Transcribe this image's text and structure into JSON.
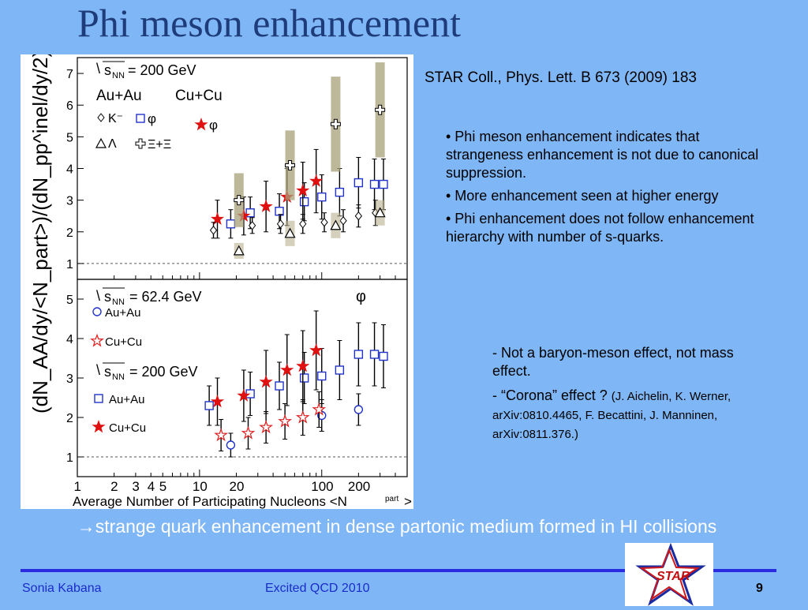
{
  "slide": {
    "title": "Phi meson enhancement",
    "reference": "STAR Coll., Phys. Lett. B 673 (2009) 183",
    "bullets": [
      "• Phi meson enhancement indicates that strangeness enhancement is not due to canonical suppression.",
      "• More enhancement seen at higher energy",
      "• Phi enhancement does not follow enhancement hierarchy with number of s-quarks."
    ],
    "sub_bullets": {
      "first": "- Not a baryon-meson effect, not mass    effect.",
      "second_main": "- “Corona” effect ? ",
      "second_refs": "(J. Aichelin, K. Werner, arXiv:0810.4465, F. Becattini, J. Manninen, arXiv:0811.376.)"
    },
    "conclusion_arrow": "→",
    "conclusion": "strange quark enhancement in dense partonic medium formed in HI collisions",
    "footer": {
      "author": "Sonia Kabana",
      "event": "Excited QCD 2010",
      "page": "9"
    },
    "logo_text": "STAR"
  },
  "chart_data": [
    {
      "type": "scatter",
      "panel": "top",
      "energy_label": "s",
      "energy_sub": "NN",
      "energy_value": "= 200 GeV",
      "systems": [
        "Au+Au",
        "Cu+Cu"
      ],
      "legend": [
        {
          "name": "K⁻",
          "marker": "diamond-open"
        },
        {
          "name": "φ",
          "marker": "square-open"
        },
        {
          "name": "Λ",
          "marker": "triangle-open"
        },
        {
          "name": "Ξ+Ξ",
          "marker": "cross-open"
        },
        {
          "name": "φ",
          "marker": "star-filled"
        }
      ],
      "ylabel": "(dN_AA/dy/<N_part>)/(dN_pp^inel/dy/2)",
      "y_ticks": [
        "1",
        "2",
        "3",
        "4",
        "5",
        "6",
        "7"
      ],
      "ylim": [
        0.5,
        7.5
      ],
      "xlim": [
        1,
        500
      ],
      "x_log": true,
      "reference_line": 1,
      "series": [
        {
          "marker": "square-open",
          "x": [
            18,
            26,
            45,
            72,
            100,
            140,
            200,
            270,
            320
          ],
          "y": [
            2.25,
            2.6,
            2.65,
            2.95,
            3.1,
            3.25,
            3.55,
            3.5,
            3.5
          ],
          "err": [
            0.45,
            0.5,
            0.55,
            0.6,
            0.7,
            0.75,
            0.8,
            0.8,
            0.8
          ]
        },
        {
          "marker": "star-filled",
          "x": [
            14,
            23,
            35,
            52,
            70,
            90
          ],
          "y": [
            2.4,
            2.5,
            2.8,
            3.1,
            3.3,
            3.6
          ],
          "err": [
            0.6,
            0.6,
            0.8,
            0.9,
            0.9,
            1.0
          ]
        },
        {
          "marker": "diamond-open",
          "x": [
            13,
            27,
            46,
            70,
            105,
            150,
            200,
            275
          ],
          "y": [
            2.05,
            2.2,
            2.25,
            2.25,
            2.3,
            2.35,
            2.5,
            2.6
          ],
          "err": [
            0.25,
            0.25,
            0.3,
            0.3,
            0.3,
            0.35,
            0.35,
            0.4
          ]
        },
        {
          "marker": "triangle-open",
          "x": [
            21,
            55,
            130,
            300
          ],
          "y": [
            1.4,
            1.95,
            2.2,
            2.6
          ],
          "err": [
            0.25,
            0.4,
            0.4,
            0.4
          ]
        },
        {
          "marker": "cross-open",
          "x": [
            21,
            55,
            130,
            300
          ],
          "y": [
            3.0,
            4.1,
            5.4,
            5.85
          ],
          "err": [
            0.85,
            1.1,
            1.5,
            1.5
          ]
        }
      ]
    },
    {
      "type": "scatter",
      "panel": "bottom",
      "energy_label": "s",
      "energy_sub": "NN",
      "energy_value_1": "=  62.4 GeV",
      "energy_value_2": "=  200 GeV",
      "particle": "φ",
      "legend": [
        {
          "name": "Au+Au",
          "marker": "circle-open",
          "group": "62.4"
        },
        {
          "name": "Cu+Cu",
          "marker": "star-open",
          "group": "62.4"
        },
        {
          "name": "Au+Au",
          "marker": "square-open",
          "group": "200"
        },
        {
          "name": "Cu+Cu",
          "marker": "star-filled",
          "group": "200"
        }
      ],
      "y_ticks": [
        "1",
        "2",
        "3",
        "4",
        "5"
      ],
      "ylim": [
        0.5,
        5.5
      ],
      "xlim": [
        1,
        500
      ],
      "x_log": true,
      "x_ticks": [
        "1",
        "2",
        "3",
        "4",
        "5",
        "10",
        "20",
        "100",
        "200"
      ],
      "x_tick_values": [
        1,
        2,
        3,
        4,
        5,
        10,
        20,
        100,
        200
      ],
      "xlabel": "Average Number of Participating Nucleons <N",
      "xlabel_sub": "part",
      "reference_line": 1,
      "series": [
        {
          "marker": "square-open",
          "x": [
            12,
            26,
            45,
            72,
            100,
            140,
            200,
            270,
            320
          ],
          "y": [
            2.3,
            2.6,
            2.8,
            3.0,
            3.05,
            3.2,
            3.6,
            3.6,
            3.55
          ],
          "err": [
            0.5,
            0.55,
            0.6,
            0.65,
            0.7,
            0.75,
            0.8,
            0.8,
            0.8
          ]
        },
        {
          "marker": "star-filled",
          "x": [
            14,
            23,
            35,
            52,
            70,
            90
          ],
          "y": [
            2.4,
            2.55,
            2.9,
            3.2,
            3.3,
            3.7
          ],
          "err": [
            0.6,
            0.65,
            0.8,
            0.9,
            0.9,
            1.0
          ]
        },
        {
          "marker": "circle-open",
          "x": [
            18,
            100,
            200
          ],
          "y": [
            1.3,
            2.05,
            2.2
          ],
          "err": [
            0.3,
            0.4,
            0.4
          ]
        },
        {
          "marker": "star-open",
          "x": [
            15,
            25,
            35,
            50,
            70,
            95
          ],
          "y": [
            1.55,
            1.6,
            1.75,
            1.9,
            2.0,
            2.2
          ],
          "err": [
            0.4,
            0.4,
            0.4,
            0.45,
            0.45,
            0.45
          ]
        }
      ]
    }
  ]
}
